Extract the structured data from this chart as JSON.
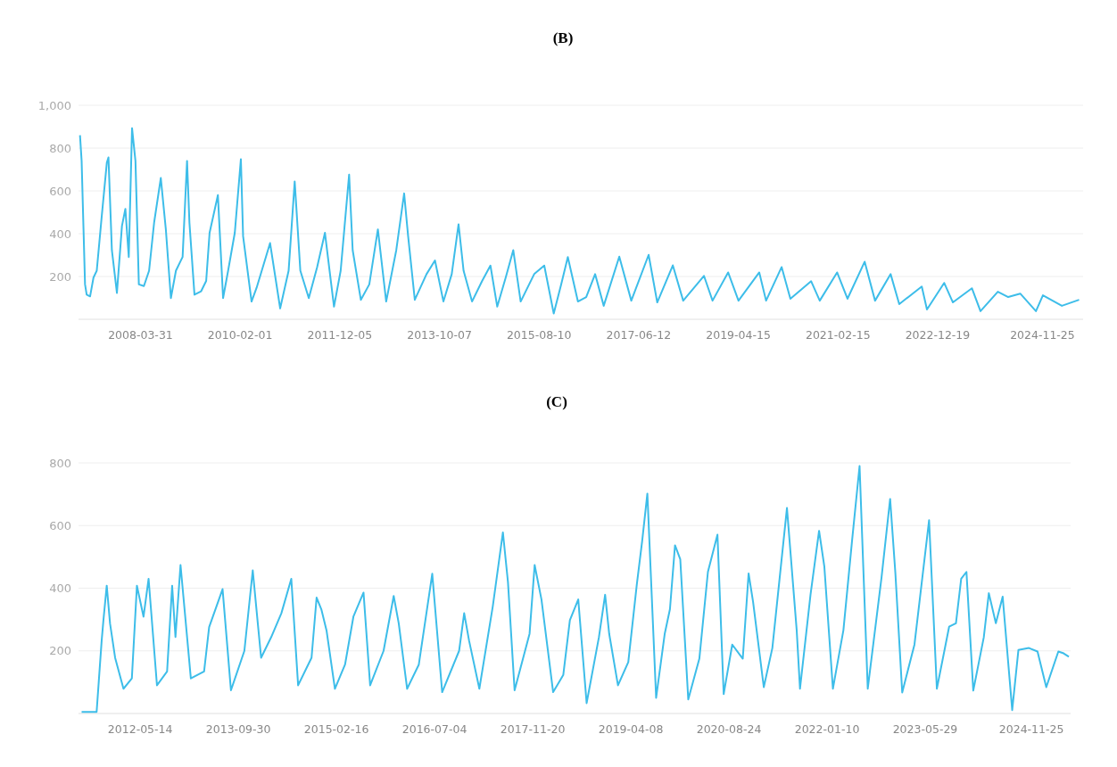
{
  "chart_data": [
    {
      "type": "line",
      "title": "(B)",
      "grid": "y",
      "marker": "none",
      "line_style": "solid",
      "xlim": [
        "2007-02-07",
        "2025-08-26"
      ],
      "ylim": [
        0,
        1000
      ],
      "yticks": [
        200,
        400,
        600,
        800,
        {
          "value": 1000,
          "label": "1,000"
        }
      ],
      "xticks": [
        "2008-03-31",
        "2010-02-01",
        "2011-12-05",
        "2013-10-07",
        "2015-08-10",
        "2017-06-12",
        "2019-04-15",
        "2021-02-15",
        "2022-12-19",
        "2024-11-25"
      ],
      "series": [
        {
          "color": "#3dbde9",
          "x": [
            "2007-02-17",
            "2007-02-28",
            "2007-03-23",
            "2007-04-03",
            "2007-04-26",
            "2007-05-19",
            "2007-06-10",
            "2007-07-14",
            "2007-08-17",
            "2007-08-28",
            "2007-09-20",
            "2007-10-24",
            "2007-11-27",
            "2007-12-20",
            "2008-01-12",
            "2008-02-03",
            "2008-02-26",
            "2008-03-20",
            "2008-04-23",
            "2008-05-28",
            "2008-07-01",
            "2008-08-15",
            "2008-09-18",
            "2008-10-22",
            "2008-11-25",
            "2009-01-09",
            "2009-02-08",
            "2009-02-24",
            "2009-03-30",
            "2009-05-14",
            "2009-06-17",
            "2009-07-10",
            "2009-09-04",
            "2009-10-09",
            "2009-11-12",
            "2009-12-27",
            "2010-02-06",
            "2010-02-21",
            "2010-04-19",
            "2010-05-23",
            "2010-08-22",
            "2010-10-29",
            "2010-12-25",
            "2011-02-04",
            "2011-03-14",
            "2011-05-10",
            "2011-07-05",
            "2011-08-27",
            "2011-10-27",
            "2011-12-11",
            "2012-02-06",
            "2012-03-01",
            "2012-04-25",
            "2012-06-21",
            "2012-08-18",
            "2012-10-13",
            "2012-12-20",
            "2013-02-11",
            "2013-03-10",
            "2013-04-24",
            "2013-07-12",
            "2013-09-07",
            "2013-11-03",
            "2013-12-29",
            "2014-02-13",
            "2014-03-19",
            "2014-05-15",
            "2014-07-22",
            "2014-09-16",
            "2014-11-01",
            "2014-12-28",
            "2015-02-17",
            "2015-04-08",
            "2015-07-08",
            "2015-09-14",
            "2015-11-17",
            "2016-01-06",
            "2016-02-20",
            "2016-04-28",
            "2016-06-23",
            "2016-08-22",
            "2016-10-19",
            "2017-02-01",
            "2017-04-23",
            "2017-08-18",
            "2017-10-15",
            "2018-01-28",
            "2018-04-08",
            "2018-08-26",
            "2018-10-23",
            "2019-02-05",
            "2019-04-16",
            "2019-09-03",
            "2019-10-19",
            "2020-02-01",
            "2020-03-31",
            "2020-08-18",
            "2020-10-15",
            "2021-02-09",
            "2021-04-20",
            "2021-08-14",
            "2021-10-23",
            "2022-02-05",
            "2022-04-04",
            "2022-09-03",
            "2022-10-08",
            "2023-02-01",
            "2023-04-01",
            "2023-08-07",
            "2023-10-04",
            "2024-01-29",
            "2024-04-08",
            "2024-06-28",
            "2024-10-12",
            "2024-11-28",
            "2025-04-05",
            "2025-07-30"
          ],
          "values": [
            860,
            740,
            163,
            115,
            107,
            195,
            227,
            484,
            732,
            756,
            323,
            123,
            436,
            516,
            291,
            893,
            740,
            163,
            155,
            227,
            452,
            660,
            420,
            99,
            227,
            291,
            740,
            452,
            115,
            131,
            179,
            404,
            580,
            99,
            227,
            404,
            748,
            388,
            83,
            147,
            356,
            51,
            227,
            644,
            227,
            99,
            243,
            404,
            59,
            227,
            676,
            323,
            91,
            163,
            420,
            83,
            323,
            588,
            388,
            91,
            211,
            275,
            83,
            211,
            444,
            227,
            83,
            179,
            251,
            59,
            195,
            323,
            83,
            211,
            251,
            27,
            163,
            291,
            83,
            104,
            211,
            63,
            293,
            87,
            301,
            79,
            252,
            87,
            203,
            87,
            219,
            87,
            219,
            87,
            244,
            96,
            178,
            87,
            219,
            96,
            269,
            87,
            211,
            71,
            153,
            46,
            170,
            79,
            145,
            38,
            129,
            104,
            120,
            38,
            112,
            63,
            91
          ]
        }
      ]
    },
    {
      "type": "line",
      "title": "(C)",
      "grid": "y",
      "marker": "none",
      "line_style": "solid",
      "xlim": [
        "2011-07-02",
        "2025-06-14"
      ],
      "ylim": [
        0,
        800
      ],
      "yticks": [
        200,
        400,
        600,
        800
      ],
      "xticks": [
        "2012-05-14",
        "2013-09-30",
        "2015-02-16",
        "2016-07-04",
        "2017-11-20",
        "2019-04-08",
        "2020-08-24",
        "2022-01-10",
        "2023-05-29",
        "2024-11-25"
      ],
      "series": [
        {
          "color": "#3dbde9",
          "x": [
            "2011-07-18",
            "2011-10-03",
            "2011-10-29",
            "2011-11-07",
            "2011-11-24",
            "2011-12-11",
            "2012-01-06",
            "2012-02-18",
            "2012-04-01",
            "2012-04-27",
            "2012-05-31",
            "2012-06-26",
            "2012-08-08",
            "2012-09-29",
            "2012-10-25",
            "2012-11-11",
            "2012-12-07",
            "2013-01-29",
            "2013-04-07",
            "2013-05-03",
            "2013-07-11",
            "2013-08-23",
            "2013-10-31",
            "2013-12-13",
            "2014-01-08",
            "2014-01-25",
            "2014-03-18",
            "2014-05-09",
            "2014-06-29",
            "2014-08-03",
            "2014-10-11",
            "2014-11-06",
            "2014-12-01",
            "2014-12-27",
            "2015-02-08",
            "2015-04-01",
            "2015-05-14",
            "2015-07-05",
            "2015-08-08",
            "2015-10-16",
            "2015-12-07",
            "2016-01-02",
            "2016-02-14",
            "2016-04-14",
            "2016-06-22",
            "2016-08-12",
            "2016-11-07",
            "2016-12-03",
            "2016-12-28",
            "2017-02-19",
            "2017-04-29",
            "2017-06-20",
            "2017-07-16",
            "2017-08-19",
            "2017-11-04",
            "2017-11-30",
            "2018-01-04",
            "2018-03-05",
            "2018-04-26",
            "2018-05-30",
            "2018-07-12",
            "2018-08-24",
            "2018-10-26",
            "2018-11-27",
            "2018-12-18",
            "2019-02-01",
            "2019-03-26",
            "2019-05-09",
            "2019-06-05",
            "2019-07-02",
            "2019-08-16",
            "2019-09-29",
            "2019-10-26",
            "2019-11-21",
            "2019-12-18",
            "2020-01-28",
            "2020-03-25",
            "2020-05-08",
            "2020-06-26",
            "2020-07-28",
            "2020-09-10",
            "2020-11-03",
            "2020-12-03",
            "2020-12-26",
            "2021-02-19",
            "2021-04-04",
            "2021-06-18",
            "2021-08-07",
            "2021-08-24",
            "2021-10-17",
            "2021-11-30",
            "2021-12-27",
            "2022-02-09",
            "2022-04-04",
            "2022-05-18",
            "2022-06-26",
            "2022-08-07",
            "2022-10-17",
            "2022-11-30",
            "2022-12-27",
            "2023-01-31",
            "2023-04-04",
            "2023-06-18",
            "2023-07-28",
            "2023-09-29",
            "2023-11-03",
            "2023-11-30",
            "2023-12-27",
            "2024-01-31",
            "2024-03-25",
            "2024-04-20",
            "2024-05-26",
            "2024-06-30",
            "2024-08-18",
            "2024-09-19",
            "2024-11-12",
            "2024-12-26",
            "2025-02-09",
            "2025-04-12",
            "2025-05-09",
            "2025-06-05"
          ],
          "values": [
            5,
            5,
            233,
            298,
            408,
            287,
            178,
            79,
            112,
            408,
            309,
            430,
            90,
            134,
            408,
            244,
            474,
            112,
            134,
            276,
            397,
            74,
            200,
            457,
            287,
            178,
            244,
            320,
            430,
            90,
            178,
            370,
            331,
            265,
            79,
            156,
            309,
            386,
            90,
            200,
            375,
            287,
            79,
            156,
            446,
            68,
            200,
            320,
            233,
            79,
            342,
            578,
            419,
            74,
            255,
            474,
            364,
            68,
            123,
            298,
            364,
            33,
            243,
            379,
            254,
            90,
            164,
            413,
            549,
            702,
            50,
            254,
            333,
            537,
            492,
            45,
            175,
            452,
            571,
            62,
            220,
            175,
            447,
            356,
            84,
            209,
            656,
            266,
            79,
            379,
            583,
            469,
            79,
            266,
            549,
            790,
            79,
            435,
            685,
            447,
            67,
            220,
            617,
            79,
            277,
            288,
            430,
            452,
            73,
            243,
            384,
            288,
            373,
            11,
            203,
            209,
            198,
            84,
            198,
            192,
            181
          ]
        }
      ]
    }
  ]
}
